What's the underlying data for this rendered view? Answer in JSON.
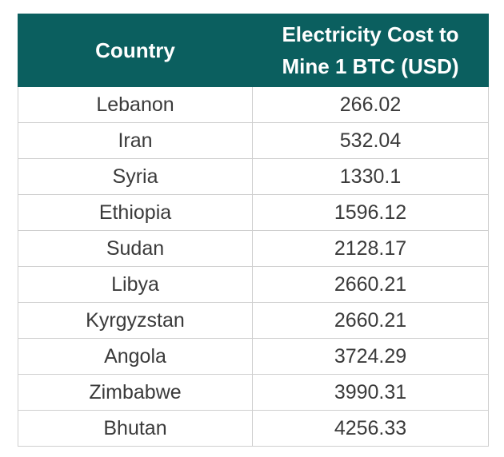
{
  "chart_data": {
    "type": "table",
    "columns": [
      "Country",
      "Electricity Cost to Mine 1 BTC (USD)"
    ],
    "rows": [
      [
        "Lebanon",
        "266.02"
      ],
      [
        "Iran",
        "532.04"
      ],
      [
        "Syria",
        "1330.1"
      ],
      [
        "Ethiopia",
        "1596.12"
      ],
      [
        "Sudan",
        "2128.17"
      ],
      [
        "Libya",
        "2660.21"
      ],
      [
        "Kyrgyzstan",
        "2660.21"
      ],
      [
        "Angola",
        "3724.29"
      ],
      [
        "Zimbabwe",
        "3990.31"
      ],
      [
        "Bhutan",
        "4256.33"
      ]
    ]
  },
  "colors": {
    "header_bg": "#0b5f5f",
    "header_text": "#ffffff",
    "body_text": "#3a3a3a",
    "grid": "#cfcfcf"
  }
}
